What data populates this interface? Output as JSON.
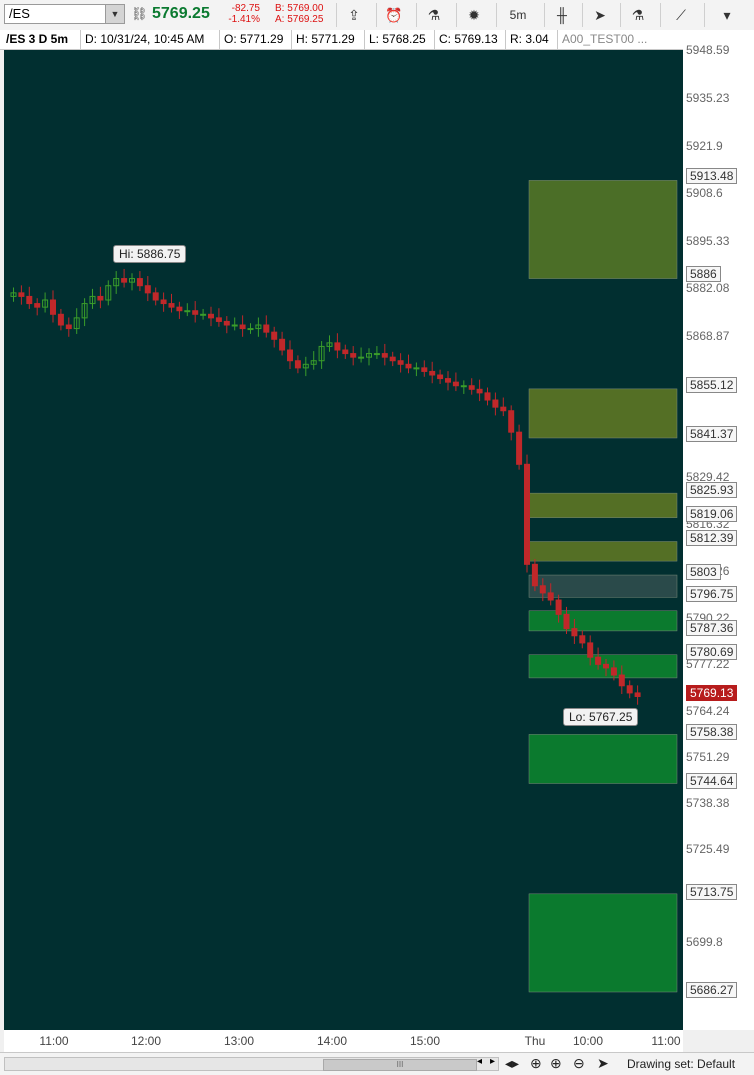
{
  "toolbar": {
    "symbol": "/ES",
    "last_price": "5769.25",
    "change": "-82.75",
    "change_pct": "-1.41%",
    "bid": "B: 5769.00",
    "ask": "A: 5769.25",
    "timeframe": "5m",
    "icons": [
      "share-icon",
      "alert-icon",
      "studies-icon",
      "settings-icon",
      "timeframe-button",
      "chart-type-icon",
      "cursor-icon",
      "patterns-icon",
      "drawings-icon"
    ]
  },
  "infobar": {
    "title": "/ES 3 D 5m",
    "date": "D: 10/31/24, 10:45 AM",
    "open": "O: 5771.29",
    "high": "H: 5771.29",
    "low": "L: 5768.25",
    "close": "C: 5769.13",
    "range": "R: 3.04",
    "study": "A00_TEST00 ..."
  },
  "chart_data": {
    "type": "candlestick",
    "symbol": "/ES",
    "interval": "5m",
    "x_ticks": [
      "11:00",
      "12:00",
      "13:00",
      "14:00",
      "15:00",
      "Thu",
      "10:00",
      "11:00"
    ],
    "y_ticks": [
      "5948.59",
      "5935.23",
      "5921.9",
      "5908.6",
      "5895.33",
      "5882.08",
      "5868.87",
      "5855.12",
      "5841.37",
      "5829.42",
      "5816.32",
      "5803.26",
      "5790.22",
      "5777.22",
      "5764.24",
      "5751.29",
      "5738.38",
      "5725.49",
      "5712.65",
      "5699.8",
      "5686.27"
    ],
    "y_tags": [
      "5913.48",
      "5886",
      "5855.12",
      "5841.37",
      "5825.93",
      "5819.06",
      "5812.39",
      "5803",
      "5796.75",
      "5787.36",
      "5780.69",
      "5758.38",
      "5744.64",
      "5713.75",
      "5686.27"
    ],
    "last_tag": "5769.13",
    "hi_label": "Hi: 5886.75",
    "lo_label": "Lo: 5767.25",
    "ylim": [
      5686.27,
      5948.59
    ],
    "zones": [
      {
        "top": 5913.48,
        "bottom": 5886.0,
        "color": "#4b6e27"
      },
      {
        "top": 5855.12,
        "bottom": 5841.37,
        "color": "#546f25"
      },
      {
        "top": 5825.93,
        "bottom": 5819.06,
        "color": "#546f25"
      },
      {
        "top": 5812.39,
        "bottom": 5806.9,
        "color": "#546f25"
      },
      {
        "top": 5803.0,
        "bottom": 5796.75,
        "color": "#2a4a4a"
      },
      {
        "top": 5793.0,
        "bottom": 5787.36,
        "color": "#0b7a2e"
      },
      {
        "top": 5780.69,
        "bottom": 5774.2,
        "color": "#0b7a2e"
      },
      {
        "top": 5758.38,
        "bottom": 5744.64,
        "color": "#0b7a2e"
      },
      {
        "top": 5713.75,
        "bottom": 5686.27,
        "color": "#0b7a2e"
      }
    ],
    "candles_close": [
      5882,
      5881,
      5879,
      5878,
      5880,
      5876,
      5873,
      5872,
      5875,
      5879,
      5881,
      5880,
      5884,
      5886,
      5885,
      5886,
      5884,
      5882,
      5880,
      5879,
      5878,
      5877,
      5877,
      5876,
      5876,
      5875,
      5874,
      5873,
      5873,
      5872,
      5872,
      5873,
      5871,
      5869,
      5866,
      5863,
      5861,
      5862,
      5863,
      5867,
      5868,
      5866,
      5865,
      5864,
      5864,
      5865,
      5865,
      5864,
      5863,
      5862,
      5861,
      5861,
      5860,
      5859,
      5858,
      5857,
      5856,
      5856,
      5855,
      5854,
      5852,
      5850,
      5849,
      5843,
      5834,
      5806,
      5800,
      5798,
      5796,
      5792,
      5788,
      5786,
      5784,
      5780,
      5778,
      5777,
      5775,
      5772,
      5770,
      5769
    ],
    "colors": {
      "up": "#3a9d2a",
      "down": "#c0282a",
      "bg": "#012f30"
    }
  },
  "xaxis": {
    "labels": [
      "11:00",
      "12:00",
      "13:00",
      "14:00",
      "15:00",
      "Thu",
      "10:00",
      "11:00"
    ]
  },
  "bottombar": {
    "drawing_set": "Drawing set: Default",
    "scroll_grip": "III"
  }
}
